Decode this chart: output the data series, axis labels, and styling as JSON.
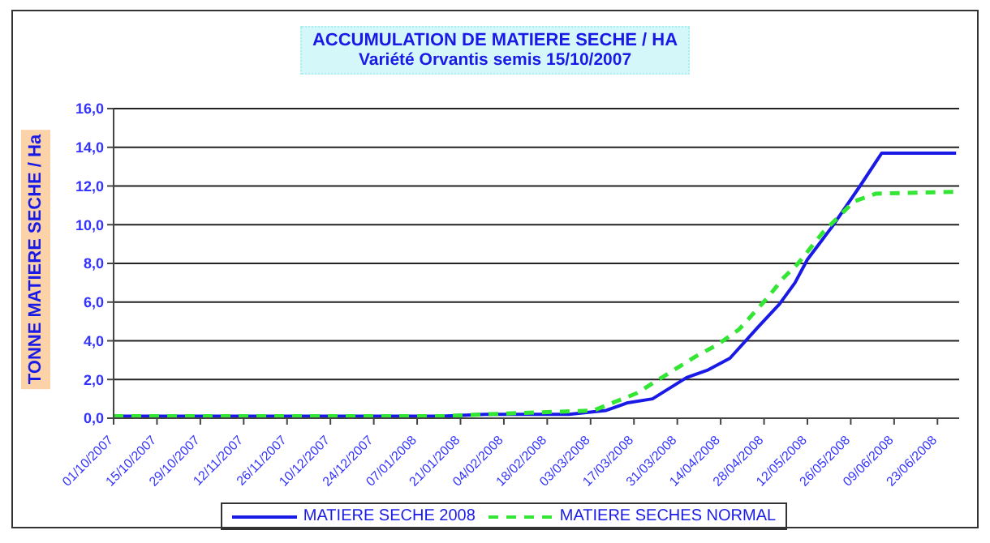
{
  "chart_data": {
    "type": "line",
    "title": "ACCUMULATION DE MATIERE SECHE / HA",
    "subtitle": "Variété Orvantis semis 15/10/2007",
    "ylabel": "TONNE MATIERE SECHE / Ha",
    "xlim": [
      "2007-10-01",
      "2008-06-30"
    ],
    "xticks": [
      {
        "value": "2007-10-01",
        "label": "01/10/2007"
      },
      {
        "value": "2007-10-15",
        "label": "15/10/2007"
      },
      {
        "value": "2007-10-29",
        "label": "29/10/2007"
      },
      {
        "value": "2007-11-12",
        "label": "12/11/2007"
      },
      {
        "value": "2007-11-26",
        "label": "26/11/2007"
      },
      {
        "value": "2007-12-10",
        "label": "10/12/2007"
      },
      {
        "value": "2007-12-24",
        "label": "24/12/2007"
      },
      {
        "value": "2008-01-07",
        "label": "07/01/2008"
      },
      {
        "value": "2008-01-21",
        "label": "21/01/2008"
      },
      {
        "value": "2008-02-04",
        "label": "04/02/2008"
      },
      {
        "value": "2008-02-18",
        "label": "18/02/2008"
      },
      {
        "value": "2008-03-03",
        "label": "03/03/2008"
      },
      {
        "value": "2008-03-17",
        "label": "17/03/2008"
      },
      {
        "value": "2008-03-31",
        "label": "31/03/2008"
      },
      {
        "value": "2008-04-14",
        "label": "14/04/2008"
      },
      {
        "value": "2008-04-28",
        "label": "28/04/2008"
      },
      {
        "value": "2008-05-12",
        "label": "12/05/2008"
      },
      {
        "value": "2008-05-26",
        "label": "26/05/2008"
      },
      {
        "value": "2008-06-09",
        "label": "09/06/2008"
      },
      {
        "value": "2008-06-23",
        "label": "23/06/2008"
      }
    ],
    "ylim": [
      0,
      16
    ],
    "yticks": [
      {
        "value": 0,
        "label": "0,0"
      },
      {
        "value": 2,
        "label": "2,0"
      },
      {
        "value": 4,
        "label": "4,0"
      },
      {
        "value": 6,
        "label": "6,0"
      },
      {
        "value": 8,
        "label": "8,0"
      },
      {
        "value": 10,
        "label": "10,0"
      },
      {
        "value": 12,
        "label": "12,0"
      },
      {
        "value": 14,
        "label": "14,0"
      },
      {
        "value": 16,
        "label": "16,0"
      }
    ],
    "grid": "y",
    "legend": "bottom",
    "marker": "none",
    "series": [
      {
        "name": "MATIERE SECHE 2008",
        "color": "#1a1ae6",
        "line_style": "solid",
        "x": [
          "2007-10-01",
          "2008-01-15",
          "2008-01-29",
          "2008-02-25",
          "2008-03-08",
          "2008-03-15",
          "2008-03-23",
          "2008-04-03",
          "2008-04-10",
          "2008-04-17",
          "2008-04-26",
          "2008-05-03",
          "2008-05-08",
          "2008-05-12",
          "2008-05-20",
          "2008-05-29",
          "2008-06-05",
          "2008-06-29"
        ],
        "values": [
          0.1,
          0.1,
          0.2,
          0.2,
          0.4,
          0.8,
          1.0,
          2.1,
          2.5,
          3.1,
          4.7,
          5.9,
          7.0,
          8.2,
          9.9,
          12.0,
          13.7,
          13.7
        ]
      },
      {
        "name": "MATIERE SECHES NORMAL",
        "color": "#33e633",
        "line_style": "dashed",
        "x": [
          "2007-10-01",
          "2008-01-15",
          "2008-01-29",
          "2008-03-04",
          "2008-03-18",
          "2008-03-25",
          "2008-04-06",
          "2008-04-13",
          "2008-04-20",
          "2008-04-29",
          "2008-05-04",
          "2008-05-09",
          "2008-05-17",
          "2008-05-27",
          "2008-06-03",
          "2008-06-29"
        ],
        "values": [
          0.1,
          0.1,
          0.2,
          0.4,
          1.3,
          2.0,
          3.2,
          3.8,
          4.6,
          6.2,
          7.2,
          8.0,
          9.6,
          11.2,
          11.6,
          11.7
        ]
      }
    ]
  }
}
